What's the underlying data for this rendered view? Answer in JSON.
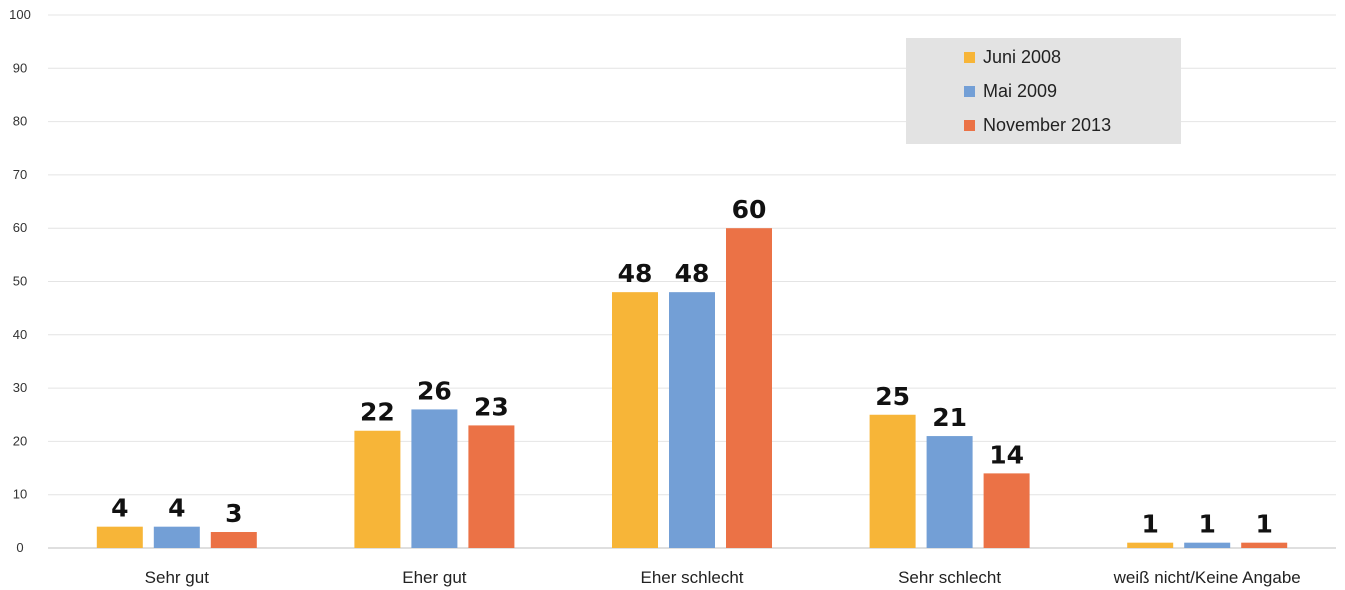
{
  "chart_data": {
    "type": "bar",
    "categories": [
      "Sehr gut",
      "Eher gut",
      "Eher schlecht",
      "Sehr schlecht",
      "weiß nicht/Keine Angabe"
    ],
    "series": [
      {
        "name": "Juni 2008",
        "values": [
          4,
          22,
          48,
          25,
          1
        ],
        "color": "#F7B538"
      },
      {
        "name": "Mai 2009",
        "values": [
          4,
          26,
          48,
          21,
          1
        ],
        "color": "#739FD6"
      },
      {
        "name": "November 2013",
        "values": [
          3,
          23,
          60,
          14,
          1
        ],
        "color": "#EB7246"
      }
    ],
    "ylim": [
      0,
      100
    ],
    "yticks": [
      "0",
      "10",
      "20",
      "30",
      "40",
      "50",
      "60",
      "70",
      "80",
      "90",
      "100"
    ],
    "grid": true,
    "legend_position": "top-right",
    "data_labels": true
  }
}
